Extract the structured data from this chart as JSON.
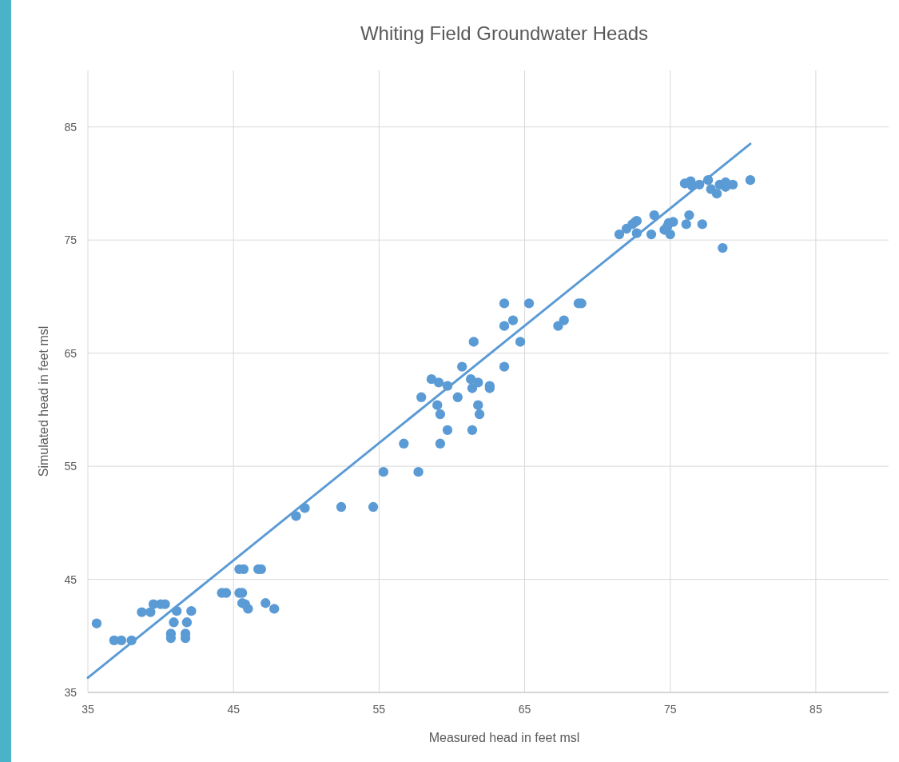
{
  "chart_data": {
    "type": "scatter",
    "title": "Whiting Field Groundwater Heads",
    "xlabel": "Measured head in feet msl",
    "ylabel": "Simulated head in feet msl",
    "xlim": [
      35,
      90
    ],
    "ylim": [
      35,
      90
    ],
    "xticks": [
      35,
      45,
      55,
      65,
      75,
      85
    ],
    "yticks": [
      35,
      45,
      55,
      65,
      75,
      85
    ],
    "grid": true,
    "series": [
      {
        "color": "#5b9bd5",
        "marker": "circle",
        "x": [
          35.6,
          36.8,
          37.3,
          38.0,
          38.7,
          39.3,
          39.5,
          40.0,
          40.3,
          40.9,
          40.7,
          40.7,
          41.1,
          41.8,
          41.7,
          41.7,
          42.1,
          44.2,
          44.5,
          45.4,
          45.6,
          45.4,
          45.7,
          45.6,
          45.8,
          46.0,
          46.7,
          46.9,
          47.2,
          47.8,
          49.3,
          49.9,
          52.4,
          54.6,
          55.3,
          56.7,
          57.7,
          57.9,
          58.6,
          59.1,
          59.0,
          59.2,
          59.7,
          59.7,
          59.2,
          60.4,
          60.7,
          61.3,
          61.4,
          61.5,
          61.4,
          61.8,
          61.8,
          61.9,
          62.6,
          62.6,
          63.6,
          63.6,
          63.6,
          64.2,
          64.7,
          65.3,
          67.3,
          67.7,
          68.7,
          68.9,
          71.5,
          72.0,
          72.4,
          72.6,
          72.7,
          72.7,
          73.9,
          73.7,
          74.6,
          74.8,
          74.9,
          75.2,
          75.0,
          76.1,
          76.3,
          77.2,
          78.6,
          76.0,
          76.4,
          76.5,
          77.0,
          77.6,
          77.8,
          78.2,
          78.4,
          78.8,
          78.8,
          79.3,
          80.5
        ],
        "values": [
          41.1,
          39.6,
          39.6,
          39.6,
          42.1,
          42.1,
          42.8,
          42.8,
          42.8,
          41.2,
          40.2,
          39.8,
          42.2,
          41.2,
          40.2,
          39.8,
          42.2,
          43.8,
          43.8,
          43.8,
          43.8,
          45.9,
          45.9,
          42.9,
          42.8,
          42.4,
          45.9,
          45.9,
          42.9,
          42.4,
          50.6,
          51.3,
          51.4,
          51.4,
          54.5,
          57.0,
          54.5,
          61.1,
          62.7,
          62.4,
          60.4,
          59.6,
          62.1,
          58.2,
          57.0,
          61.1,
          63.8,
          62.7,
          61.9,
          66.0,
          58.2,
          62.4,
          60.4,
          59.6,
          62.1,
          61.9,
          63.8,
          69.4,
          67.4,
          67.9,
          66.0,
          69.4,
          67.4,
          67.9,
          69.4,
          69.4,
          75.5,
          76.0,
          76.4,
          76.6,
          76.7,
          75.6,
          77.2,
          75.5,
          75.9,
          76.2,
          76.5,
          76.6,
          75.5,
          76.4,
          77.2,
          76.4,
          74.3,
          80.0,
          80.2,
          79.8,
          79.9,
          80.3,
          79.5,
          79.1,
          79.9,
          80.1,
          79.7,
          79.9,
          80.3
        ]
      },
      {
        "type": "line",
        "color": "#5b9bd5",
        "x": [
          35,
          80.5
        ],
        "values": [
          36.3,
          83.5
        ],
        "line_style": "solid",
        "marker": "none"
      }
    ]
  }
}
